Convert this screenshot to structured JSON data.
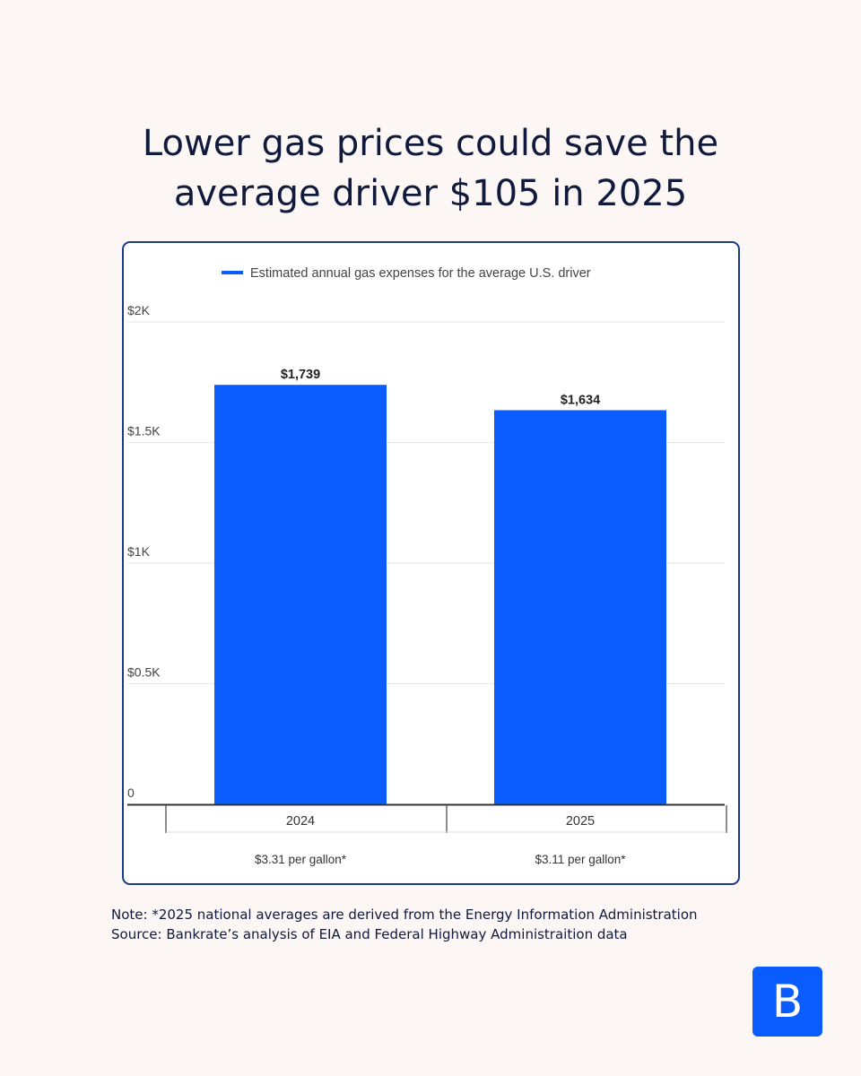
{
  "header": {
    "title_line1": "Lower gas prices could save the",
    "title_line2": "average driver $105 in 2025"
  },
  "chart_data": {
    "type": "bar",
    "title": "Lower gas prices could save the average driver $105 in 2025",
    "categories": [
      "2024",
      "2025"
    ],
    "sublabels": [
      "$3.31 per gallon*",
      "$3.11 per gallon*"
    ],
    "series": [
      {
        "name": "Estimated annual gas expenses for the average U.S. driver",
        "values": [
          1739,
          1634
        ],
        "value_labels": [
          "$1,739",
          "$1,634"
        ],
        "color": "#0b5cff"
      }
    ],
    "ylim": [
      0,
      2000
    ],
    "yticks": [
      0,
      500,
      1000,
      1500,
      2000
    ],
    "ytick_labels": [
      "0",
      "$0.5K",
      "$1K",
      "$1.5K",
      "$2K"
    ],
    "grid": true,
    "legend_position": "top-center",
    "xlabel": "",
    "ylabel": ""
  },
  "footer": {
    "note": "Note: *2025 national averages are derived from the Energy Information Administration",
    "source": "Source: Bankrate’s analysis of EIA and Federal Highway Administraition data"
  },
  "brand": {
    "logo_letter": "B",
    "accent_color": "#0b5cff",
    "text_color": "#0f1a3d",
    "background_color": "#fcf6f5"
  }
}
